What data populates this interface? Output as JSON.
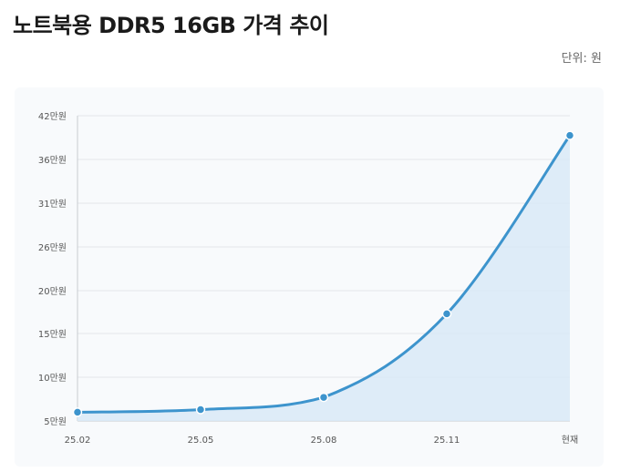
{
  "header": {
    "title": "노트북용 DDR5 16GB 가격 추이",
    "unit_label": "단위: 원"
  },
  "chart_data": {
    "type": "area",
    "title": "노트북용 DDR5 16GB 가격 추이",
    "ylabel": "",
    "xlabel": "",
    "categories": [
      "25.02",
      "25.05",
      "25.08",
      "25.11",
      "현재"
    ],
    "values": [
      60000,
      63000,
      77000,
      173000,
      393000
    ],
    "ylim": [
      50000,
      420000
    ],
    "y_ticks": [
      {
        "value": 50000,
        "label": "5만원"
      },
      {
        "value": 100000,
        "label": "10만원"
      },
      {
        "value": 150000,
        "label": "15만원"
      },
      {
        "value": 200000,
        "label": "20만원"
      },
      {
        "value": 260000,
        "label": "26만원"
      },
      {
        "value": 310000,
        "label": "31만원"
      },
      {
        "value": 360000,
        "label": "36만원"
      },
      {
        "value": 420000,
        "label": "42만원"
      }
    ],
    "grid": true,
    "colors": {
      "line": "#3d94cd",
      "fill": "#d9e9f7",
      "point": "#3d94cd",
      "grid": "#e3e6ea",
      "axis": "#c8ccd1"
    }
  }
}
